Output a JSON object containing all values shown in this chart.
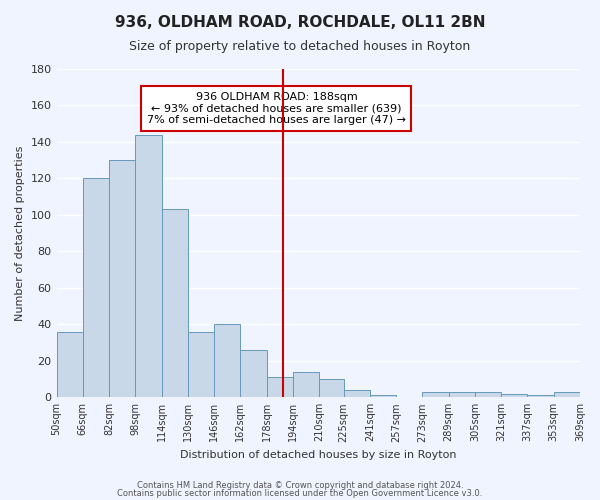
{
  "title": "936, OLDHAM ROAD, ROCHDALE, OL11 2BN",
  "subtitle": "Size of property relative to detached houses in Royton",
  "xlabel": "Distribution of detached houses by size in Royton",
  "ylabel": "Number of detached properties",
  "bar_color": "#c8d8e8",
  "bar_edge_color": "#6699bb",
  "background_color": "#f0f4ff",
  "grid_color": "#ffffff",
  "vline_x": 188,
  "vline_color": "#cc0000",
  "bin_edges": [
    50,
    66,
    82,
    98,
    114,
    130,
    146,
    162,
    178,
    194,
    210,
    225,
    241,
    257,
    273,
    289,
    305,
    321,
    337,
    353,
    369
  ],
  "bar_heights": [
    36,
    120,
    130,
    144,
    103,
    36,
    40,
    26,
    11,
    14,
    10,
    4,
    1,
    0,
    3,
    3,
    3,
    2,
    1,
    3
  ],
  "tick_labels": [
    "50sqm",
    "66sqm",
    "82sqm",
    "98sqm",
    "114sqm",
    "130sqm",
    "146sqm",
    "162sqm",
    "178sqm",
    "194sqm",
    "210sqm",
    "225sqm",
    "241sqm",
    "257sqm",
    "273sqm",
    "289sqm",
    "305sqm",
    "321sqm",
    "337sqm",
    "353sqm",
    "369sqm"
  ],
  "ylim": [
    0,
    180
  ],
  "yticks": [
    0,
    20,
    40,
    60,
    80,
    100,
    120,
    140,
    160,
    180
  ],
  "annotation_title": "936 OLDHAM ROAD: 188sqm",
  "annotation_line2": "← 93% of detached houses are smaller (639)",
  "annotation_line3": "7% of semi-detached houses are larger (47) →",
  "annotation_box_color": "#ffffff",
  "annotation_box_edge": "#cc0000",
  "footer1": "Contains HM Land Registry data © Crown copyright and database right 2024.",
  "footer2": "Contains public sector information licensed under the Open Government Licence v3.0."
}
